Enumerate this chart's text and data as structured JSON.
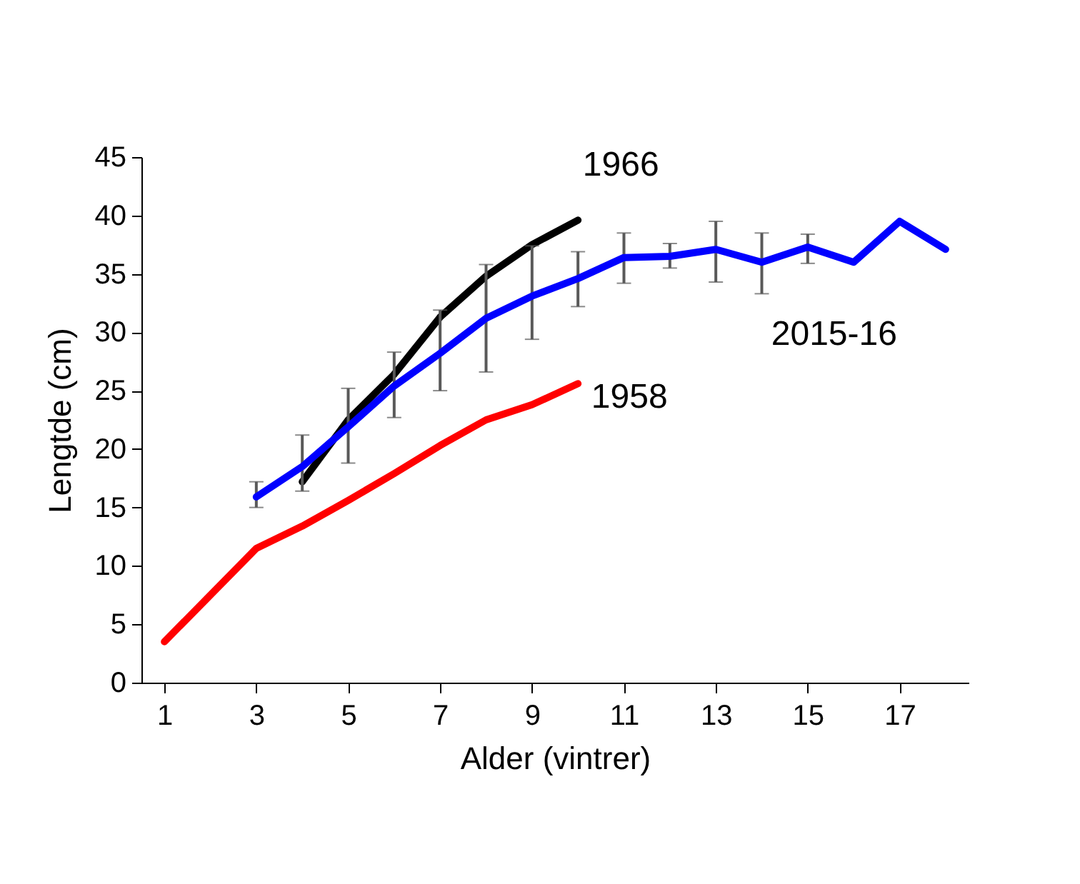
{
  "chart_data": {
    "type": "line",
    "xlabel": "Alder (vintrer)",
    "ylabel": "Lengtde (cm)",
    "xlim": [
      0.5,
      18.5
    ],
    "xticks": [
      1,
      3,
      5,
      7,
      9,
      11,
      13,
      15,
      17
    ],
    "ylim": [
      0,
      45
    ],
    "yticks": [
      0,
      5,
      10,
      15,
      20,
      25,
      30,
      35,
      40,
      45
    ],
    "grid": false,
    "marker": "none",
    "line_style": "solid",
    "series": [
      {
        "name": "1966",
        "color": "#000000",
        "x": [
          4,
          5,
          6,
          7,
          8,
          9,
          10
        ],
        "values": [
          17.2,
          22.5,
          26.4,
          31.3,
          34.8,
          37.5,
          39.6
        ]
      },
      {
        "name": "1958",
        "color": "#ff0000",
        "x": [
          1,
          3,
          4,
          5,
          6,
          7,
          8,
          9,
          10
        ],
        "values": [
          3.5,
          11.5,
          13.4,
          15.6,
          17.9,
          20.3,
          22.5,
          23.8,
          25.6
        ]
      },
      {
        "name": "2015-16",
        "color": "#0000ff",
        "x": [
          3,
          4,
          5,
          6,
          7,
          8,
          9,
          10,
          11,
          12,
          13,
          14,
          15,
          16,
          17,
          18
        ],
        "values": [
          15.9,
          18.5,
          21.9,
          25.4,
          28.2,
          31.2,
          33.1,
          34.6,
          36.4,
          36.5,
          37.1,
          36.0,
          37.3,
          36.0,
          39.5,
          37.1
        ],
        "errors": [
          [
            15.0,
            17.2
          ],
          [
            16.4,
            21.2
          ],
          [
            18.8,
            25.2
          ],
          [
            22.7,
            28.3
          ],
          [
            25.0,
            31.9
          ],
          [
            26.6,
            35.8
          ],
          [
            29.4,
            37.4
          ],
          [
            32.2,
            36.9
          ],
          [
            34.2,
            38.5
          ],
          [
            35.5,
            37.6
          ],
          [
            34.3,
            39.5
          ],
          [
            33.3,
            38.5
          ],
          [
            35.9,
            38.4
          ],
          null,
          null,
          null
        ]
      }
    ]
  }
}
